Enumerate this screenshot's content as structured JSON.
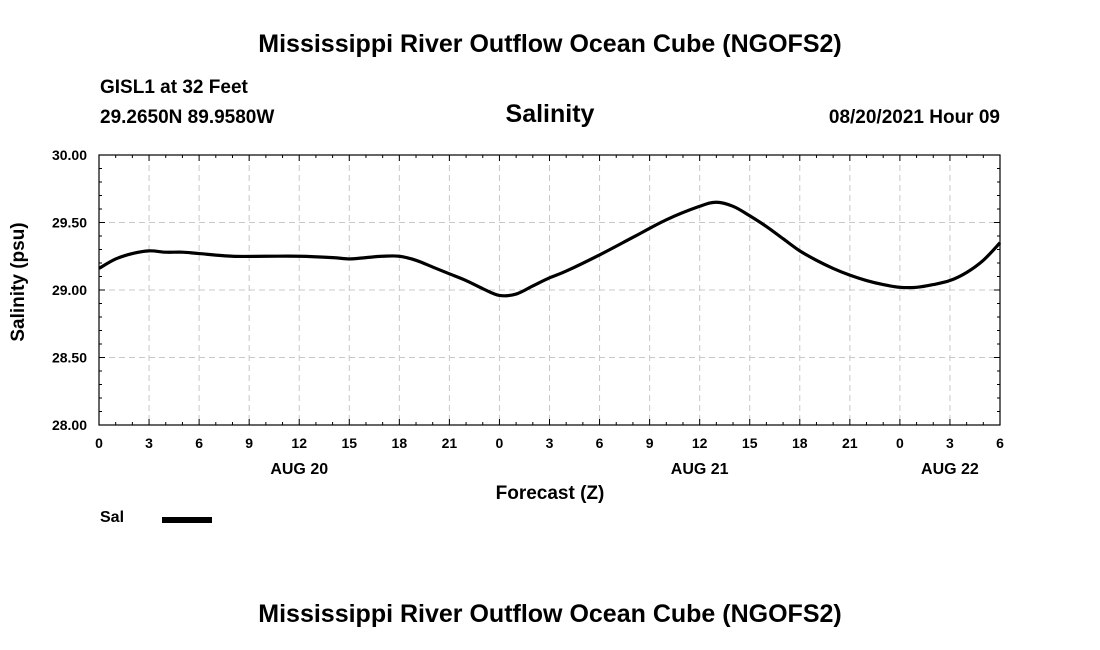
{
  "header": {
    "title": "Mississippi River Outflow Ocean Cube (NGOFS2)",
    "station": "GISL1 at 32 Feet",
    "coords": "29.2650N  89.9580W",
    "variable": "Salinity",
    "datetime": "08/20/2021 Hour 09"
  },
  "footer": {
    "title": "Mississippi River Outflow Ocean Cube (NGOFS2)"
  },
  "legend": {
    "label": "Sal"
  },
  "chart_data": {
    "type": "line",
    "title": "Salinity",
    "xlabel": "Forecast (Z)",
    "ylabel": "Salinity (psu)",
    "ylim": [
      28.0,
      30.0
    ],
    "yticks": [
      "28.00",
      "28.50",
      "29.00",
      "29.50",
      "30.00"
    ],
    "xlim_hours": [
      0,
      54
    ],
    "xtick_labels": [
      "0",
      "3",
      "6",
      "9",
      "12",
      "15",
      "18",
      "21",
      "0",
      "3",
      "6",
      "9",
      "12",
      "15",
      "18",
      "21",
      "0",
      "3",
      "6"
    ],
    "date_labels": [
      {
        "label": "AUG 20",
        "hour": 12
      },
      {
        "label": "AUG 21",
        "hour": 36
      },
      {
        "label": "AUG 22",
        "hour": 51
      }
    ],
    "grid": true,
    "legend_position": "bottom-left",
    "series": [
      {
        "name": "Sal",
        "color": "#000000",
        "x_hours": [
          0,
          1,
          2,
          3,
          4,
          5,
          6,
          8,
          10,
          12,
          14,
          15,
          16,
          17,
          18,
          19,
          20,
          21,
          22,
          23,
          24,
          25,
          26,
          27,
          28,
          30,
          32,
          34,
          36,
          37,
          38,
          39,
          40,
          41,
          42,
          43,
          44,
          45,
          46,
          47,
          48,
          49,
          50,
          51,
          52,
          53,
          54
        ],
        "values": [
          29.16,
          29.23,
          29.27,
          29.29,
          29.28,
          29.28,
          29.27,
          29.25,
          29.25,
          29.25,
          29.24,
          29.23,
          29.24,
          29.25,
          29.25,
          29.22,
          29.17,
          29.12,
          29.07,
          29.01,
          28.96,
          28.97,
          29.03,
          29.09,
          29.14,
          29.26,
          29.39,
          29.52,
          29.62,
          29.65,
          29.62,
          29.55,
          29.47,
          29.38,
          29.29,
          29.22,
          29.16,
          29.11,
          29.07,
          29.04,
          29.02,
          29.02,
          29.04,
          29.07,
          29.13,
          29.22,
          29.35
        ]
      }
    ]
  }
}
